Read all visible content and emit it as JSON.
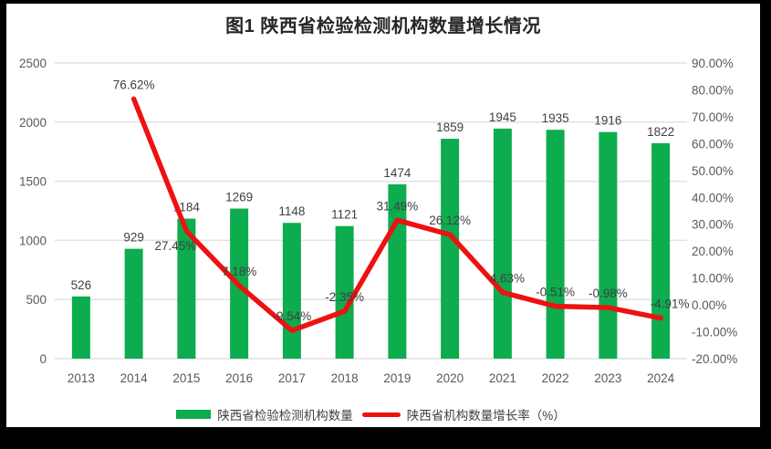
{
  "page": {
    "frame_color": "#000000",
    "canvas_color": "#ffffff",
    "grid_color": "#e2e2e2",
    "axis_text_color": "#595959",
    "label_text_color": "#404040"
  },
  "chart_data": {
    "type": "combo-bar-line",
    "title": "图1 陕西省检验检测机构数量增长情况",
    "categories": [
      "2013",
      "2014",
      "2015",
      "2016",
      "2017",
      "2018",
      "2019",
      "2020",
      "2021",
      "2022",
      "2023",
      "2024"
    ],
    "series": [
      {
        "name": "陕西省检验检测机构数量",
        "type": "bar",
        "axis": "left",
        "color": "#0dac4e",
        "values": [
          526,
          929,
          1184,
          1269,
          1148,
          1121,
          1474,
          1859,
          1945,
          1935,
          1916,
          1822
        ],
        "labels": [
          "526",
          "929",
          "1184",
          "1269",
          "1148",
          "1121",
          "1474",
          "1859",
          "1945",
          "1935",
          "1916",
          "1822"
        ]
      },
      {
        "name": "陕西省机构数量增长率（%）",
        "type": "line",
        "axis": "right",
        "color": "#ee1111",
        "values": [
          null,
          76.62,
          27.45,
          7.18,
          -9.54,
          -2.35,
          31.49,
          26.12,
          4.63,
          -0.51,
          -0.98,
          -4.91
        ],
        "labels": [
          null,
          "76.62%",
          "27.45%",
          "7.18%",
          "-9.54%",
          "-2.35%",
          "31.49%",
          "26.12%",
          "4.63%",
          "-0.51%",
          "-0.98%",
          "-4.91%"
        ]
      }
    ],
    "left_axis": {
      "min": 0,
      "max": 2500,
      "step": 500,
      "ticks": [
        "0",
        "500",
        "1000",
        "1500",
        "2000",
        "2500"
      ]
    },
    "right_axis": {
      "min": -20,
      "max": 90,
      "step": 10,
      "ticks_top_down": [
        "90.00%",
        "80.00%",
        "70.00%",
        "60.00%",
        "50.00%",
        "40.00%",
        "30.00%",
        "20.00%",
        "10.00%",
        "0.00%",
        "-10.00%",
        "-20.00%"
      ]
    },
    "grid": true,
    "legend_position": "bottom"
  }
}
